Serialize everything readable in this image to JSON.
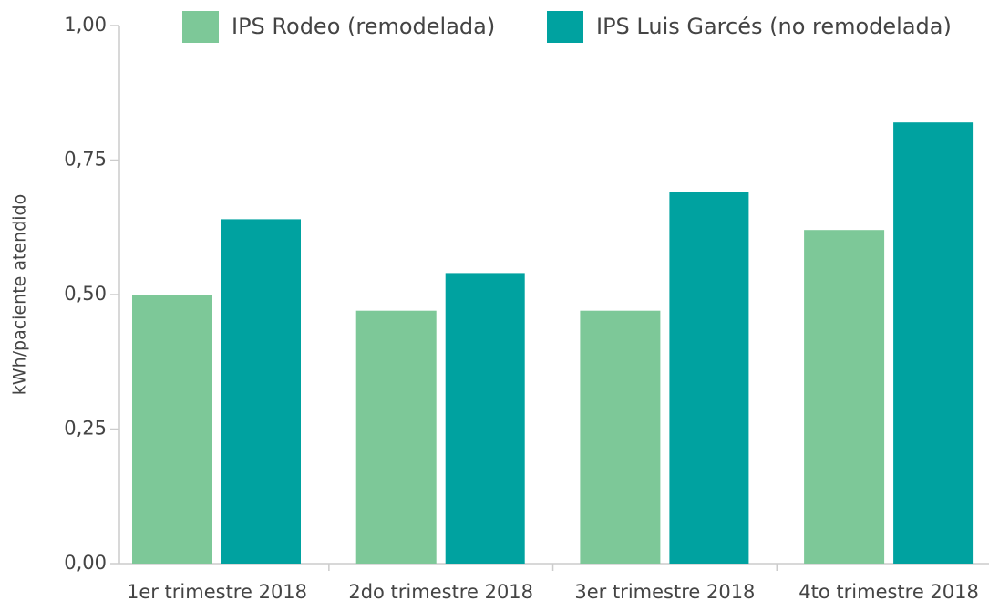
{
  "chart_data": {
    "type": "bar",
    "y_label": "kWh/paciente atendido",
    "categories": [
      "1er trimestre 2018",
      "2do trimestre 2018",
      "3er trimestre 2018",
      "4to trimestre 2018"
    ],
    "series": [
      {
        "name": "IPS Rodeo (remodelada)",
        "color": "#7dc898",
        "values": [
          0.5,
          0.47,
          0.47,
          0.62
        ]
      },
      {
        "name": "IPS Luis Garcés (no remodelada)",
        "color": "#00a2a0",
        "values": [
          0.64,
          0.54,
          0.69,
          0.82
        ]
      }
    ],
    "ylim": [
      0,
      1
    ],
    "yticks": [
      {
        "value": 0,
        "label": "0,00"
      },
      {
        "value": 0.25,
        "label": "0,25"
      },
      {
        "value": 0.5,
        "label": "0,50"
      },
      {
        "value": 0.75,
        "label": "0,75"
      },
      {
        "value": 1,
        "label": "1,00"
      }
    ],
    "legend": "top",
    "grid": false
  }
}
